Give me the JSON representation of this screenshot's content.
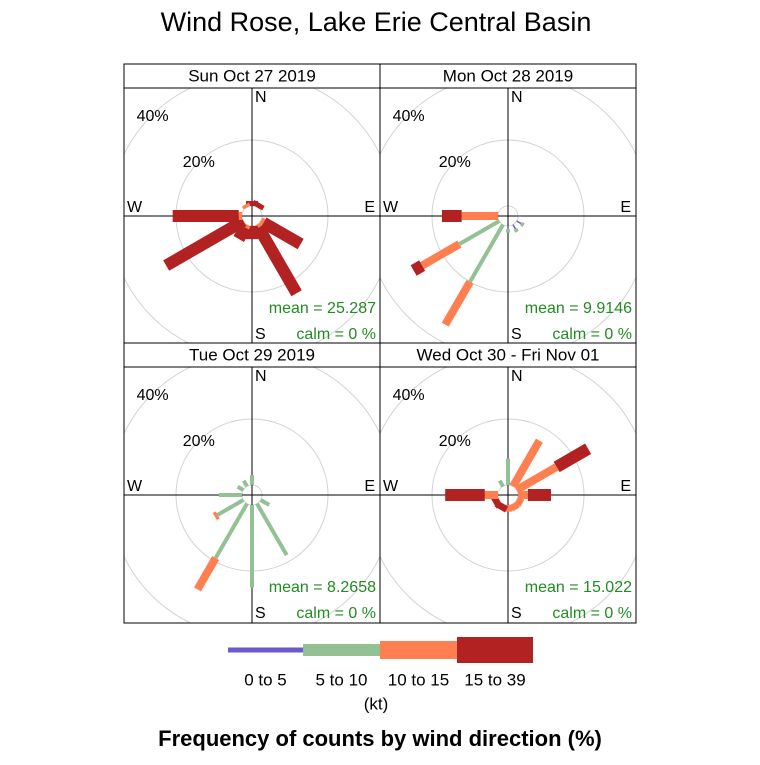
{
  "chart_data": {
    "type": "windrose",
    "title": "Wind Rose, Lake Erie Central Basin",
    "xlabel": "Frequency of counts by wind direction (%)",
    "legend_title": "(kt)",
    "bins": [
      {
        "name": "0 to 5",
        "color": "#6a5acd"
      },
      {
        "name": "5 to 10",
        "color": "#93c193"
      },
      {
        "name": "10 to 15",
        "color": "#ff7f50"
      },
      {
        "name": "15 to 39",
        "color": "#b22222"
      }
    ],
    "compass": [
      "N",
      "E",
      "S",
      "W"
    ],
    "directions": [
      0,
      30,
      60,
      90,
      120,
      150,
      180,
      210,
      240,
      270,
      300,
      330
    ],
    "rlim": [
      0,
      40
    ],
    "rticks": [
      {
        "value": 20,
        "label": "20%"
      },
      {
        "value": 40,
        "label": "40%"
      }
    ],
    "panels": [
      {
        "title": "Sun Oct 27 2019",
        "mean_label": "mean  =  25.287",
        "calm_label": "calm  =  0 %",
        "series": [
          {
            "values": [
              0,
              0,
              0,
              0,
              0,
              0,
              0,
              0,
              0,
              0,
              0,
              0
            ]
          },
          {
            "values": [
              0,
              0,
              0,
              0,
              0,
              0,
              0,
              0,
              0,
              0,
              0,
              0
            ]
          },
          {
            "values": [
              0,
              0,
              0,
              0,
              1,
              1,
              0,
              1,
              0,
              1,
              0,
              1
            ]
          },
          {
            "values": [
              1.5,
              1.5,
              0,
              0,
              13,
              23,
              4,
              4,
              27,
              20,
              0,
              0
            ]
          }
        ]
      },
      {
        "title": "Mon Oct 28 2019",
        "mean_label": "mean  =  9.9146",
        "calm_label": "calm  =  0 %",
        "series": [
          {
            "values": [
              0,
              0,
              0,
              0.5,
              1.5,
              1.5,
              1,
              0,
              0,
              0,
              0,
              0
            ]
          },
          {
            "values": [
              0,
              0,
              0,
              0,
              1,
              1,
              1,
              20,
              14,
              0,
              0,
              0
            ]
          },
          {
            "values": [
              0,
              0,
              0,
              0,
              0,
              0,
              0,
              15,
              13,
              11,
              0,
              0
            ]
          },
          {
            "values": [
              0,
              0,
              0,
              0,
              0,
              0,
              0,
              0,
              3,
              6,
              0,
              0
            ]
          }
        ]
      },
      {
        "title": "Tue Oct 29 2019",
        "mean_label": "mean  =  8.2658",
        "calm_label": "calm  =  0 %",
        "series": [
          {
            "values": [
              0,
              0,
              0,
              0,
              0,
              0,
              0,
              0,
              0,
              0,
              0,
              0
            ]
          },
          {
            "values": [
              3,
              0,
              0,
              0,
              3,
              18,
              25,
              19,
              9,
              7,
              2,
              2
            ]
          },
          {
            "values": [
              0,
              0,
              0,
              0,
              0,
              0,
              0,
              11,
              1,
              0,
              0,
              0
            ]
          },
          {
            "values": [
              0,
              0,
              0,
              0,
              0,
              0,
              0,
              0,
              0,
              0,
              0,
              0
            ]
          }
        ]
      },
      {
        "title": "Wed Oct 30 - Fri Nov 01",
        "mean_label": "mean  =  15.022",
        "calm_label": "calm  =  0 %",
        "series": [
          {
            "values": [
              0,
              0,
              0,
              0,
              0,
              0,
              0,
              0,
              0,
              0,
              0,
              0
            ]
          },
          {
            "values": [
              8,
              0,
              0,
              0,
              0,
              0,
              0,
              0,
              0,
              0,
              0,
              2
            ]
          },
          {
            "values": [
              0,
              16,
              14,
              3,
              2,
              2,
              2,
              0,
              0,
              4,
              0,
              0
            ]
          },
          {
            "values": [
              0,
              0,
              11,
              7,
              0,
              0,
              0,
              2,
              2,
              12,
              0,
              0
            ]
          }
        ]
      }
    ]
  }
}
